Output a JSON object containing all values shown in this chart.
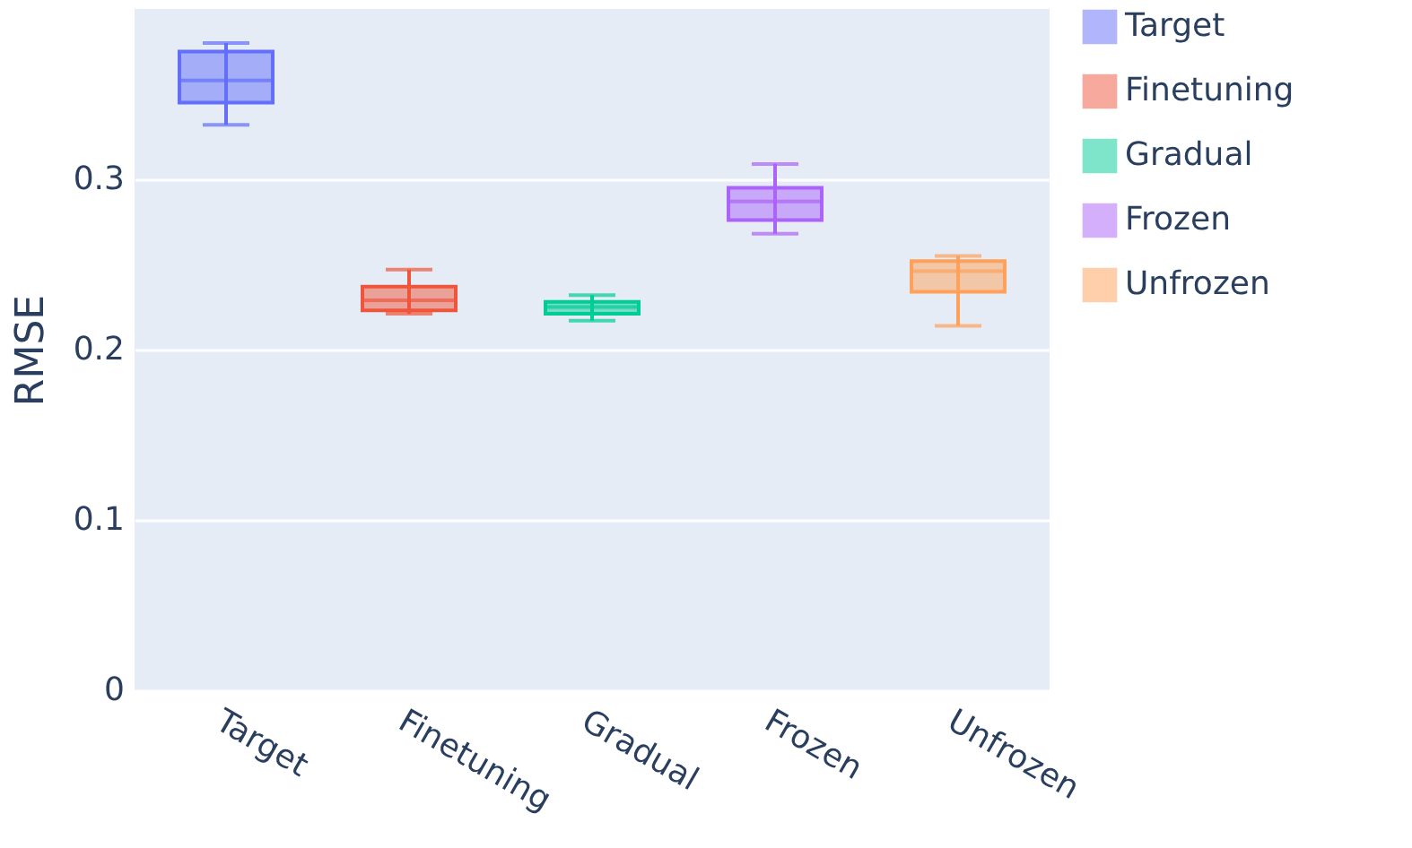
{
  "chart_data": {
    "type": "box",
    "ylabel": "RMSE",
    "categories": [
      "Target",
      "Finetuning",
      "Gradual",
      "Frozen",
      "Unfrozen"
    ],
    "series": [
      {
        "name": "Target",
        "color": "#636efa",
        "x": [
          "Target"
        ],
        "boxes": [
          {
            "low": 0.332,
            "q1": 0.345,
            "median": 0.358,
            "q3": 0.375,
            "high": 0.38
          }
        ]
      },
      {
        "name": "Finetuning",
        "color": "#ef553b",
        "x": [
          "Finetuning"
        ],
        "boxes": [
          {
            "low": 0.221,
            "q1": 0.223,
            "median": 0.229,
            "q3": 0.237,
            "high": 0.247
          }
        ]
      },
      {
        "name": "Gradual",
        "color": "#00cc96",
        "x": [
          "Gradual"
        ],
        "boxes": [
          {
            "low": 0.217,
            "q1": 0.221,
            "median": 0.225,
            "q3": 0.228,
            "high": 0.232
          }
        ]
      },
      {
        "name": "Frozen",
        "color": "#ab63fa",
        "x": [
          "Frozen"
        ],
        "boxes": [
          {
            "low": 0.268,
            "q1": 0.276,
            "median": 0.287,
            "q3": 0.295,
            "high": 0.309
          }
        ]
      },
      {
        "name": "Unfrozen",
        "color": "#ffa15a",
        "x": [
          "Unfrozen"
        ],
        "boxes": [
          {
            "low": 0.214,
            "q1": 0.234,
            "median": 0.246,
            "q3": 0.252,
            "high": 0.255
          }
        ]
      }
    ],
    "ylim": [
      0,
      0.4
    ],
    "yticks": [
      0,
      0.1,
      0.2,
      0.3
    ],
    "grid": "y",
    "legend": "top right"
  }
}
